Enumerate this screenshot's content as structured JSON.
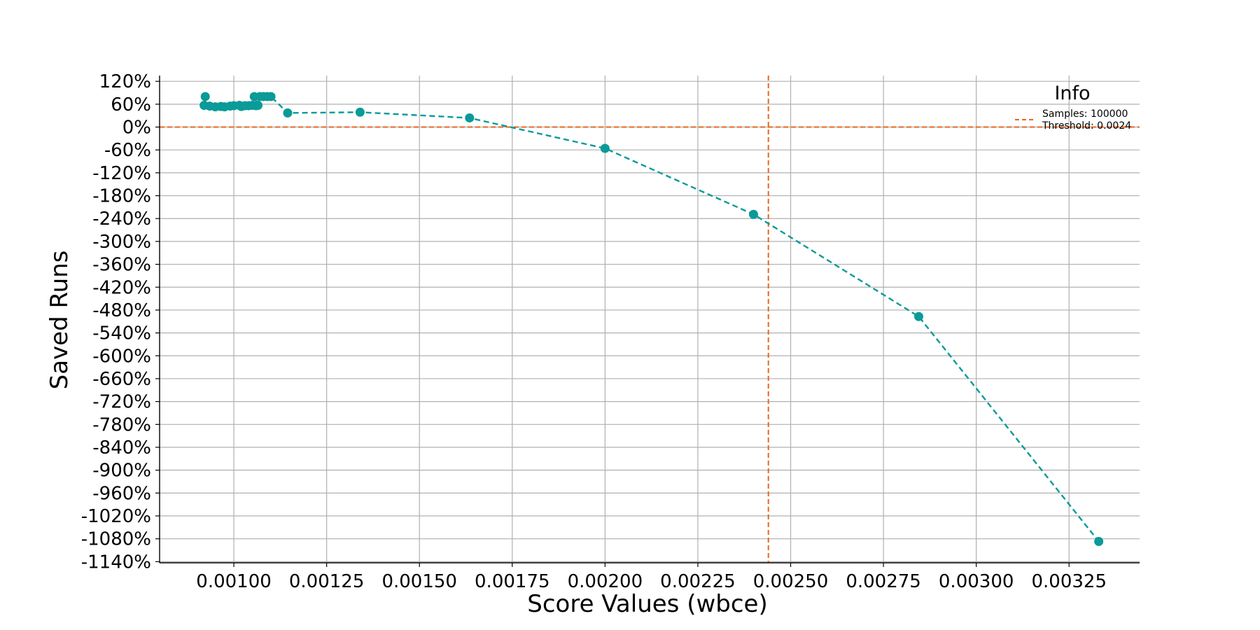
{
  "chart_data": {
    "type": "line",
    "title": "",
    "xlabel": "Score Values (wbce)",
    "ylabel": "Saved Runs",
    "xlim": [
      0.0008,
      0.00344
    ],
    "ylim": [
      -1143,
      135
    ],
    "x_ticks": [
      0.001,
      0.00125,
      0.0015,
      0.00175,
      0.002,
      0.00225,
      0.0025,
      0.00275,
      0.003,
      0.00325
    ],
    "x_tick_labels": [
      "0.00100",
      "0.00125",
      "0.00150",
      "0.00175",
      "0.00200",
      "0.00225",
      "0.00250",
      "0.00275",
      "0.00300",
      "0.00325"
    ],
    "y_ticks": [
      120,
      60,
      0,
      -60,
      -120,
      -180,
      -240,
      -300,
      -360,
      -420,
      -480,
      -540,
      -600,
      -660,
      -720,
      -780,
      -840,
      -900,
      -960,
      -1020,
      -1080,
      -1140
    ],
    "y_tick_labels": [
      "120%",
      "60%",
      "0%",
      "-60%",
      "-120%",
      "-180%",
      "-240%",
      "-300%",
      "-360%",
      "-420%",
      "-480%",
      "-540%",
      "-600%",
      "-660%",
      "-720%",
      "-780%",
      "-840%",
      "-900%",
      "-960%",
      "-1020%",
      "-1080%",
      "-1140%"
    ],
    "grid": true,
    "series": [
      {
        "color": "#0a9a98",
        "line_style": "dashed",
        "marker": "circle",
        "points": [
          {
            "x": 0.000923,
            "y": 80
          },
          {
            "x": 0.00092,
            "y": 57
          },
          {
            "x": 0.000935,
            "y": 55
          },
          {
            "x": 0.00095,
            "y": 53
          },
          {
            "x": 0.000965,
            "y": 54
          },
          {
            "x": 0.000975,
            "y": 53
          },
          {
            "x": 0.00099,
            "y": 55
          },
          {
            "x": 0.001,
            "y": 56
          },
          {
            "x": 0.001015,
            "y": 57
          },
          {
            "x": 0.00102,
            "y": 54
          },
          {
            "x": 0.00103,
            "y": 56
          },
          {
            "x": 0.00104,
            "y": 56
          },
          {
            "x": 0.00105,
            "y": 57
          },
          {
            "x": 0.00106,
            "y": 56
          },
          {
            "x": 0.001065,
            "y": 57
          },
          {
            "x": 0.001055,
            "y": 80
          },
          {
            "x": 0.00107,
            "y": 80
          },
          {
            "x": 0.00108,
            "y": 80
          },
          {
            "x": 0.00109,
            "y": 80
          },
          {
            "x": 0.0011,
            "y": 80
          },
          {
            "x": 0.001145,
            "y": 37
          },
          {
            "x": 0.00134,
            "y": 39
          },
          {
            "x": 0.001635,
            "y": 24
          },
          {
            "x": 0.002,
            "y": -56
          },
          {
            "x": 0.0024,
            "y": -229
          },
          {
            "x": 0.002845,
            "y": -497
          },
          {
            "x": 0.00333,
            "y": -1087
          }
        ]
      }
    ],
    "reference_lines": [
      {
        "orientation": "horizontal",
        "value": 0,
        "color": "#e8661c",
        "line_style": "dashed"
      },
      {
        "orientation": "vertical",
        "value": 0.00244,
        "color": "#e8661c",
        "line_style": "dashed"
      }
    ],
    "legend": {
      "title": "Info",
      "placement": "top-right",
      "entries": [
        {
          "label": "Samples: 100000",
          "color": "#e8661c",
          "line_style": "dashed"
        },
        {
          "label": "Threshold: 0.0024",
          "color": "",
          "line_style": "none"
        }
      ]
    },
    "colors": {
      "series": "#0a9a98",
      "reference": "#e8661c",
      "grid": "#b0b0b0",
      "axis": "#000000"
    }
  }
}
